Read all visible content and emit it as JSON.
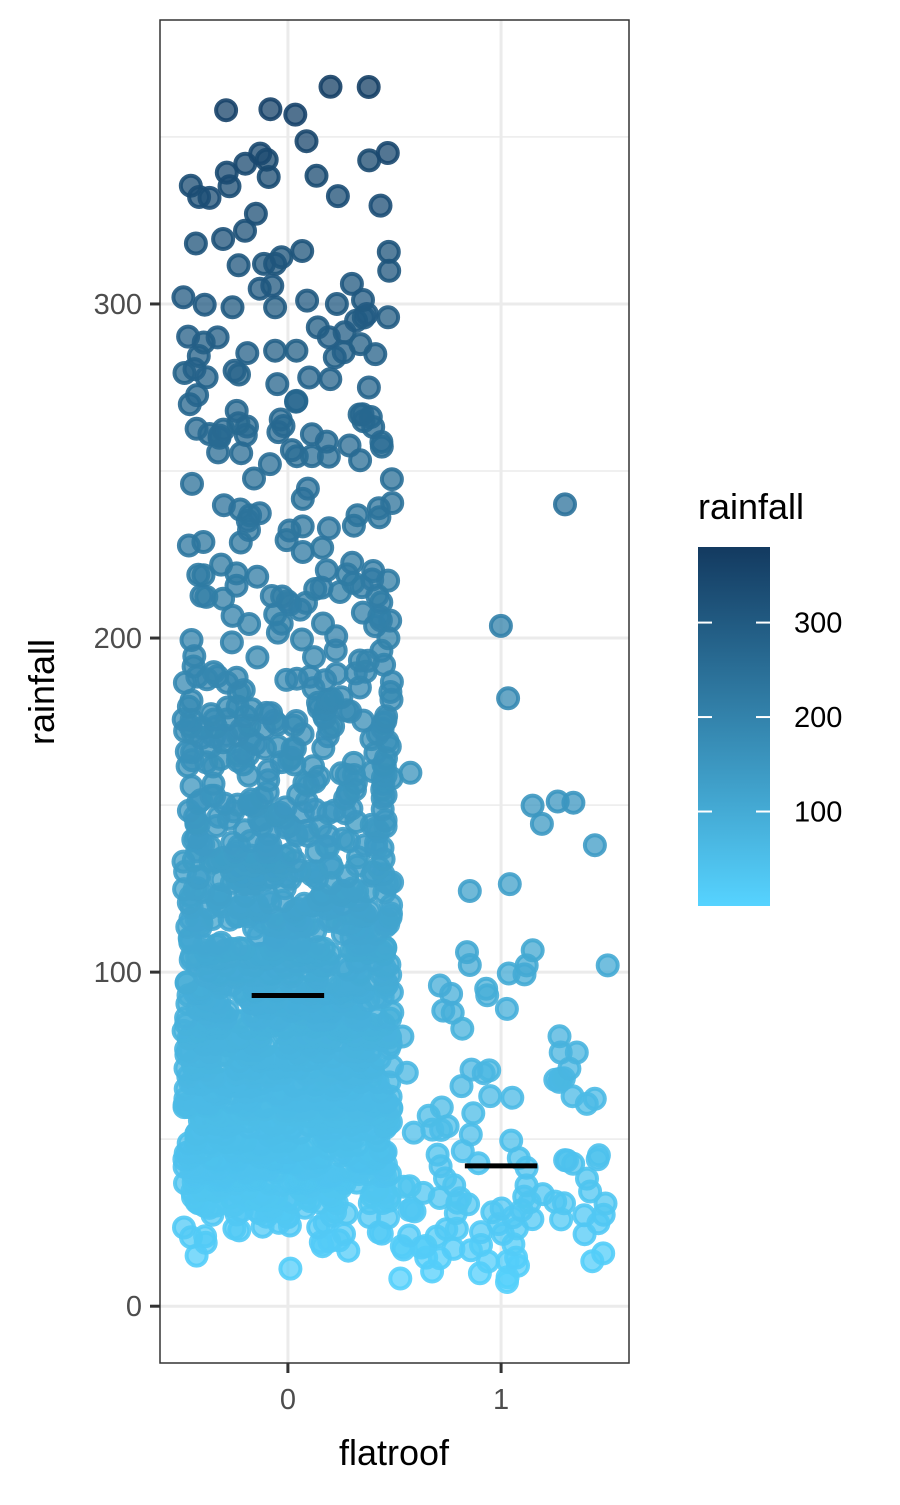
{
  "chart_data": {
    "type": "scatter",
    "title": "",
    "xlabel": "flatroof",
    "ylabel": "rainfall",
    "x_ticks": [
      0,
      1
    ],
    "y_ticks": [
      0,
      100,
      200,
      300
    ],
    "xlim": [
      -0.6,
      1.6
    ],
    "ylim": [
      -17,
      385
    ],
    "grid": true,
    "jitter": "horizontal",
    "legend": {
      "title": "rainfall",
      "type": "colorbar",
      "placement": "right",
      "range": [
        0,
        380
      ],
      "ticks": [
        100,
        200,
        300
      ],
      "color_low": "#56d3ff",
      "color_high": "#133a60"
    },
    "point_style": {
      "fill_opacity": 0.75,
      "stroke_opacity": 0.9
    },
    "medians": [
      {
        "x": 0,
        "y": 93
      },
      {
        "x": 1,
        "y": 42
      }
    ],
    "groups": [
      {
        "flatroof": 0,
        "count": 1400,
        "note_points": [
          {
            "x": 0.2,
            "y": 365
          },
          {
            "x": -0.29,
            "y": 358
          },
          {
            "x": -0.13,
            "y": 345
          },
          {
            "x": -0.2,
            "y": 342
          },
          {
            "x": -0.09,
            "y": 338
          },
          {
            "x": -0.15,
            "y": 327
          },
          {
            "x": -0.03,
            "y": 314
          },
          {
            "x": -0.06,
            "y": 312
          },
          {
            "x": 0.3,
            "y": 306
          },
          {
            "x": -0.49,
            "y": 302
          },
          {
            "x": 0.09,
            "y": 301
          },
          {
            "x": 0.23,
            "y": 300
          },
          {
            "x": -0.26,
            "y": 299
          },
          {
            "x": -0.06,
            "y": 299
          },
          {
            "x": 0.37,
            "y": 297
          },
          {
            "x": 0.47,
            "y": 296
          },
          {
            "x": 0.32,
            "y": 295
          },
          {
            "x": 0.14,
            "y": 293
          },
          {
            "x": -0.33,
            "y": 290
          },
          {
            "x": 0.34,
            "y": 288
          },
          {
            "x": 0.04,
            "y": 286
          },
          {
            "x": -0.06,
            "y": 286
          },
          {
            "x": 0.41,
            "y": 285
          },
          {
            "x": 0.22,
            "y": 284
          },
          {
            "x": -0.25,
            "y": 280
          },
          {
            "x": 0.1,
            "y": 278
          },
          {
            "x": -0.05,
            "y": 276
          },
          {
            "x": 0.38,
            "y": 275
          },
          {
            "x": 0.04,
            "y": 271
          },
          {
            "x": -0.46,
            "y": 270
          },
          {
            "x": -0.24,
            "y": 268
          },
          {
            "x": 0.35,
            "y": 267
          }
        ],
        "rainfall_range": [
          0,
          365
        ]
      },
      {
        "flatroof": 1,
        "count": 120,
        "note_points": [
          {
            "x": 1.3,
            "y": 240
          },
          {
            "x": 1.44,
            "y": 138
          },
          {
            "x": 0.84,
            "y": 106
          },
          {
            "x": 1.12,
            "y": 102
          },
          {
            "x": 1.5,
            "y": 102
          },
          {
            "x": 0.93,
            "y": 95
          }
        ],
        "rainfall_range": [
          0,
          240
        ]
      }
    ]
  }
}
